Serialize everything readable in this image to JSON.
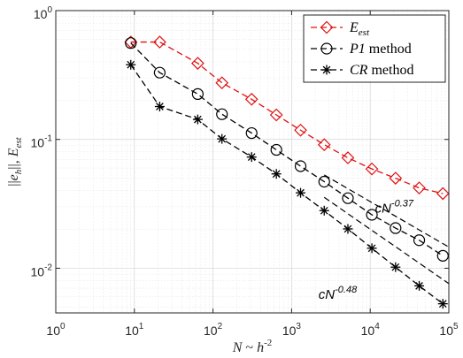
{
  "chart_data": {
    "type": "line",
    "xscale": "log",
    "yscale": "log",
    "xlim": [
      1,
      100000
    ],
    "ylim": [
      0.0045,
      1
    ],
    "grid": true,
    "legend_position": "top-right",
    "xlabel": "N ~ h^-2",
    "ylabel": "||e_h||, E_est",
    "x_ticks": [
      {
        "value": 1,
        "base": "10",
        "exp": "0"
      },
      {
        "value": 10,
        "base": "10",
        "exp": "1"
      },
      {
        "value": 100,
        "base": "10",
        "exp": "2"
      },
      {
        "value": 1000,
        "base": "10",
        "exp": "3"
      },
      {
        "value": 10000,
        "base": "10",
        "exp": "4"
      },
      {
        "value": 100000,
        "base": "10",
        "exp": "5"
      }
    ],
    "y_ticks": [
      {
        "value": 0.01,
        "base": "10",
        "exp": "-2"
      },
      {
        "value": 0.1,
        "base": "10",
        "exp": "-1"
      },
      {
        "value": 1,
        "base": "10",
        "exp": "0"
      }
    ],
    "series": [
      {
        "name": "E_est",
        "legend": {
          "main": "E",
          "sub": "est"
        },
        "color": "#e01010",
        "marker": "diamond",
        "x": [
          9,
          21,
          64,
          130,
          310,
          640,
          1300,
          2600,
          5200,
          10500,
          21000,
          42000,
          84000
        ],
        "y": [
          0.57,
          0.57,
          0.39,
          0.275,
          0.205,
          0.155,
          0.118,
          0.091,
          0.072,
          0.059,
          0.05,
          0.042,
          0.038
        ]
      },
      {
        "name": "P1 method",
        "legend": {
          "main": "P1",
          "rest": " method"
        },
        "color": "#000000",
        "marker": "circle",
        "x": [
          9,
          21,
          64,
          130,
          310,
          640,
          1300,
          2600,
          5200,
          10500,
          21000,
          42000,
          84000
        ],
        "y": [
          0.56,
          0.33,
          0.225,
          0.157,
          0.112,
          0.083,
          0.062,
          0.047,
          0.035,
          0.026,
          0.0205,
          0.0165,
          0.0125
        ]
      },
      {
        "name": "CR method",
        "legend": {
          "main": "CR",
          "rest": " method"
        },
        "color": "#000000",
        "marker": "asterisk",
        "x": [
          9,
          21,
          64,
          130,
          310,
          640,
          1300,
          2600,
          5200,
          10500,
          21000,
          42000,
          84000
        ],
        "y": [
          0.38,
          0.18,
          0.143,
          0.101,
          0.073,
          0.054,
          0.0385,
          0.028,
          0.0202,
          0.0143,
          0.0102,
          0.0073,
          0.0053
        ]
      }
    ],
    "reference_lines": [
      {
        "label_base": "cN",
        "label_exp": "-0.37",
        "x": [
          2600,
          100000
        ],
        "y": [
          0.053,
          0.0146
        ]
      },
      {
        "label_base": "cN",
        "label_exp": "-0.48",
        "x": [
          2600,
          100000
        ],
        "y": [
          0.0355,
          0.0076
        ]
      }
    ],
    "annotations": [
      {
        "base": "cN",
        "exp": "-0.37",
        "x": 11500,
        "y": 0.027
      },
      {
        "base": "cN",
        "exp": "-0.48",
        "x": 2200,
        "y": 0.0058
      }
    ]
  }
}
